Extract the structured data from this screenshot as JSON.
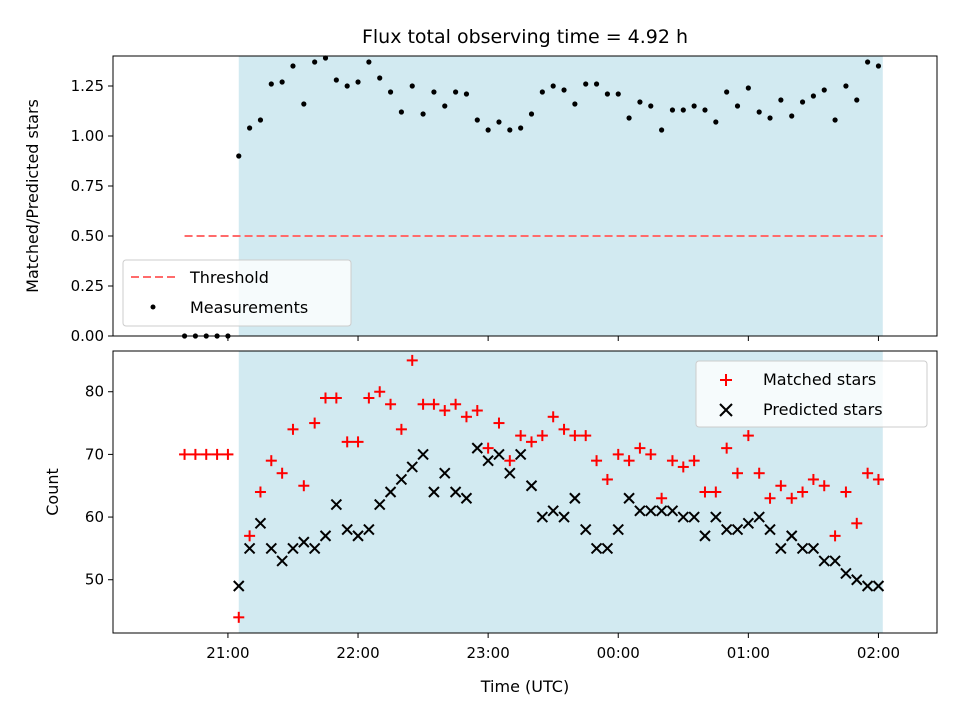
{
  "title": "Flux total observing time = 4.92 h",
  "chart_data": [
    {
      "type": "scatter",
      "panel": "top",
      "ylabel": "Matched/Predicted stars",
      "xlabel": "",
      "ylim": [
        0,
        1.4
      ],
      "yticks": [
        0.0,
        0.25,
        0.5,
        0.75,
        1.0,
        1.25
      ],
      "ytick_labels": [
        "0.00",
        "0.25",
        "0.50",
        "0.75",
        "1.00",
        "1.25"
      ],
      "shaded_region": {
        "from": "21:05",
        "to": "02:02",
        "color": "#add8e6"
      },
      "threshold": {
        "name": "Threshold",
        "value": 0.5,
        "x_from": "20:40",
        "x_to": "02:02",
        "color": "#ff6b6b"
      },
      "legend": {
        "position": "lower-left",
        "entries": [
          "Threshold",
          "Measurements"
        ]
      },
      "series": [
        {
          "name": "Measurements",
          "marker": "dot",
          "color": "#000000",
          "x": [
            "20:40",
            "20:45",
            "20:50",
            "20:55",
            "21:00",
            "21:05",
            "21:10",
            "21:15",
            "21:20",
            "21:25",
            "21:30",
            "21:35",
            "21:40",
            "21:45",
            "21:50",
            "21:55",
            "22:00",
            "22:05",
            "22:10",
            "22:15",
            "22:20",
            "22:25",
            "22:30",
            "22:35",
            "22:40",
            "22:45",
            "22:50",
            "22:55",
            "23:00",
            "23:05",
            "23:10",
            "23:15",
            "23:20",
            "23:25",
            "23:30",
            "23:35",
            "23:40",
            "23:45",
            "23:50",
            "23:55",
            "00:00",
            "00:05",
            "00:10",
            "00:15",
            "00:20",
            "00:25",
            "00:30",
            "00:35",
            "00:40",
            "00:45",
            "00:50",
            "00:55",
            "01:00",
            "01:05",
            "01:10",
            "01:15",
            "01:20",
            "01:25",
            "01:30",
            "01:35",
            "01:40",
            "01:45",
            "01:50",
            "01:55",
            "02:00"
          ],
          "y": [
            0,
            0,
            0,
            0,
            0,
            0.9,
            1.04,
            1.08,
            1.26,
            1.27,
            1.35,
            1.16,
            1.37,
            1.39,
            1.28,
            1.25,
            1.27,
            1.37,
            1.29,
            1.22,
            1.12,
            1.25,
            1.11,
            1.22,
            1.15,
            1.22,
            1.21,
            1.08,
            1.03,
            1.07,
            1.03,
            1.04,
            1.11,
            1.22,
            1.25,
            1.23,
            1.16,
            1.26,
            1.26,
            1.21,
            1.21,
            1.09,
            1.17,
            1.15,
            1.03,
            1.13,
            1.13,
            1.15,
            1.13,
            1.07,
            1.22,
            1.15,
            1.24,
            1.12,
            1.09,
            1.18,
            1.1,
            1.17,
            1.2,
            1.23,
            1.08,
            1.25,
            1.18,
            1.37,
            1.35
          ]
        }
      ]
    },
    {
      "type": "scatter",
      "panel": "bottom",
      "ylabel": "Count",
      "xlabel": "Time (UTC)",
      "ylim": [
        41.5,
        86.5
      ],
      "yticks": [
        50,
        60,
        70,
        80
      ],
      "ytick_labels": [
        "50",
        "60",
        "70",
        "80"
      ],
      "xticks": [
        "21:00",
        "22:00",
        "23:00",
        "00:00",
        "01:00",
        "02:00"
      ],
      "shaded_region": {
        "from": "21:05",
        "to": "02:02",
        "color": "#add8e6"
      },
      "legend": {
        "position": "top-right",
        "entries": [
          "Matched stars",
          "Predicted stars"
        ]
      },
      "series": [
        {
          "name": "Matched stars",
          "marker": "plus",
          "color": "#ff0000",
          "x": [
            "20:40",
            "20:45",
            "20:50",
            "20:55",
            "21:00",
            "21:05",
            "21:10",
            "21:15",
            "21:20",
            "21:25",
            "21:30",
            "21:35",
            "21:40",
            "21:45",
            "21:50",
            "21:55",
            "22:00",
            "22:05",
            "22:10",
            "22:15",
            "22:20",
            "22:25",
            "22:30",
            "22:35",
            "22:40",
            "22:45",
            "22:50",
            "22:55",
            "23:00",
            "23:05",
            "23:10",
            "23:15",
            "23:20",
            "23:25",
            "23:30",
            "23:35",
            "23:40",
            "23:45",
            "23:50",
            "23:55",
            "00:00",
            "00:05",
            "00:10",
            "00:15",
            "00:20",
            "00:25",
            "00:30",
            "00:35",
            "00:40",
            "00:45",
            "00:50",
            "00:55",
            "01:00",
            "01:05",
            "01:10",
            "01:15",
            "01:20",
            "01:25",
            "01:30",
            "01:35",
            "01:40",
            "01:45",
            "01:50",
            "01:55",
            "02:00"
          ],
          "y": [
            70,
            70,
            70,
            70,
            70,
            44,
            57,
            64,
            69,
            67,
            74,
            65,
            75,
            79,
            79,
            72,
            72,
            79,
            80,
            78,
            74,
            85,
            78,
            78,
            77,
            78,
            76,
            77,
            71,
            75,
            69,
            73,
            72,
            73,
            76,
            74,
            73,
            73,
            69,
            66,
            70,
            69,
            71,
            70,
            63,
            69,
            68,
            69,
            64,
            64,
            71,
            67,
            73,
            67,
            63,
            65,
            63,
            64,
            66,
            65,
            57,
            64,
            59,
            67,
            66
          ]
        },
        {
          "name": "Predicted stars",
          "marker": "cross",
          "color": "#000000",
          "x": [
            "21:05",
            "21:10",
            "21:15",
            "21:20",
            "21:25",
            "21:30",
            "21:35",
            "21:40",
            "21:45",
            "21:50",
            "21:55",
            "22:00",
            "22:05",
            "22:10",
            "22:15",
            "22:20",
            "22:25",
            "22:30",
            "22:35",
            "22:40",
            "22:45",
            "22:50",
            "22:55",
            "23:00",
            "23:05",
            "23:10",
            "23:15",
            "23:20",
            "23:25",
            "23:30",
            "23:35",
            "23:40",
            "23:45",
            "23:50",
            "23:55",
            "00:00",
            "00:05",
            "00:10",
            "00:15",
            "00:20",
            "00:25",
            "00:30",
            "00:35",
            "00:40",
            "00:45",
            "00:50",
            "00:55",
            "01:00",
            "01:05",
            "01:10",
            "01:15",
            "01:20",
            "01:25",
            "01:30",
            "01:35",
            "01:40",
            "01:45",
            "01:50",
            "01:55",
            "02:00"
          ],
          "y": [
            49,
            55,
            59,
            55,
            53,
            55,
            56,
            55,
            57,
            62,
            58,
            57,
            58,
            62,
            64,
            66,
            68,
            70,
            64,
            67,
            64,
            63,
            71,
            69,
            70,
            67,
            70,
            65,
            60,
            61,
            60,
            63,
            58,
            55,
            55,
            58,
            63,
            61,
            61,
            61,
            61,
            60,
            60,
            57,
            60,
            58,
            58,
            59,
            60,
            58,
            55,
            57,
            55,
            55,
            53,
            53,
            51,
            50,
            49,
            49
          ]
        }
      ]
    }
  ]
}
